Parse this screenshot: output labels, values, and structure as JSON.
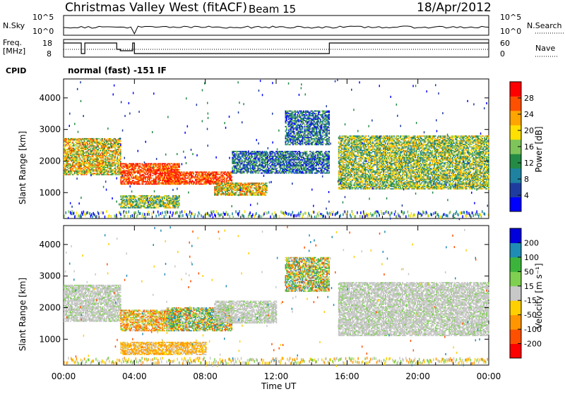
{
  "header": {
    "title": "Christmas Valley West (fitACF)",
    "beam": "Beam 15",
    "date": "18/Apr/2012"
  },
  "mini_panels": {
    "nsky": {
      "label": "N.Sky",
      "right_label": "N.Search",
      "left_ticks": [
        "10^5",
        "10^0"
      ],
      "right_ticks": [
        "10^5",
        "10^0"
      ]
    },
    "freq": {
      "label": "Freq.",
      "unit": "[MHz]",
      "left_ticks": [
        "18",
        "8"
      ],
      "right_label": "Nave",
      "right_ticks": [
        "60",
        "0"
      ]
    },
    "cpid": {
      "label": "CPID",
      "value": "normal (fast) -151 IF"
    }
  },
  "chart_data": [
    {
      "type": "heatmap",
      "name": "power",
      "ylabel": "Slant Range [km]",
      "xlabel": "Time UT",
      "x_range": [
        "00:00",
        "24:00"
      ],
      "ylim": [
        180,
        4600
      ],
      "yticks": [
        1000,
        2000,
        3000,
        4000
      ],
      "colorbar": {
        "label": "Power [dB]",
        "ticks": [
          "28",
          "24",
          "20",
          "16",
          "12",
          "8",
          "4"
        ],
        "colors": [
          "#0000ff",
          "#1e3ca0",
          "#1e82a0",
          "#238b45",
          "#7fc45a",
          "#ffe000",
          "#ffa500",
          "#ff5000",
          "#ff0000"
        ]
      },
      "regions": [
        {
          "t0": 0.0,
          "t1": 3.2,
          "r0": 1550,
          "r1": 2700,
          "level": "high"
        },
        {
          "t0": 3.2,
          "t1": 6.5,
          "r0": 1250,
          "r1": 1900,
          "level": "very_high"
        },
        {
          "t0": 5.8,
          "t1": 9.5,
          "r0": 1250,
          "r1": 1650,
          "level": "very_high"
        },
        {
          "t0": 8.5,
          "t1": 11.5,
          "r0": 900,
          "r1": 1300,
          "level": "high"
        },
        {
          "t0": 3.2,
          "t1": 6.5,
          "r0": 500,
          "r1": 900,
          "level": "medium"
        },
        {
          "t0": 9.5,
          "t1": 15.0,
          "r0": 1600,
          "r1": 2300,
          "level": "low"
        },
        {
          "t0": 15.5,
          "t1": 24.0,
          "r0": 1100,
          "r1": 2800,
          "level": "medium"
        },
        {
          "t0": 12.5,
          "t1": 15.0,
          "r0": 2500,
          "r1": 3600,
          "level": "low"
        }
      ]
    },
    {
      "type": "heatmap",
      "name": "velocity",
      "ylabel": "Slant Range [km]",
      "xlabel": "Time UT",
      "x_range": [
        "00:00",
        "24:00"
      ],
      "ylim": [
        180,
        4600
      ],
      "yticks": [
        1000,
        2000,
        3000,
        4000
      ],
      "colorbar": {
        "label": "Velocity [m s⁻¹]",
        "ticks": [
          "200",
          "100",
          "50",
          "15",
          "-15",
          "-50",
          "-100",
          "-200"
        ],
        "colors": [
          "#ff0000",
          "#ff5000",
          "#ff9600",
          "#ffd000",
          "#c8c8c8",
          "#7fd050",
          "#3cb43c",
          "#1e8cb4",
          "#0000dc"
        ]
      },
      "regions": [
        {
          "t0": 0.0,
          "t1": 3.2,
          "r0": 1550,
          "r1": 2700,
          "level": "ground"
        },
        {
          "t0": 3.2,
          "t1": 6.5,
          "r0": 1250,
          "r1": 1900,
          "level": "mixed"
        },
        {
          "t0": 5.8,
          "t1": 9.5,
          "r0": 1250,
          "r1": 2000,
          "level": "toward"
        },
        {
          "t0": 8.5,
          "t1": 12.0,
          "r0": 1500,
          "r1": 2200,
          "level": "ground"
        },
        {
          "t0": 3.2,
          "t1": 8.0,
          "r0": 500,
          "r1": 900,
          "level": "away"
        },
        {
          "t0": 15.5,
          "t1": 24.0,
          "r0": 1100,
          "r1": 2800,
          "level": "ground"
        },
        {
          "t0": 12.5,
          "t1": 15.0,
          "r0": 2500,
          "r1": 3600,
          "level": "toward"
        }
      ]
    }
  ],
  "xaxis": {
    "ticks": [
      "00:00",
      "04:00",
      "08:00",
      "12:00",
      "16:00",
      "20:00",
      "00:00"
    ],
    "label": "Time UT"
  }
}
